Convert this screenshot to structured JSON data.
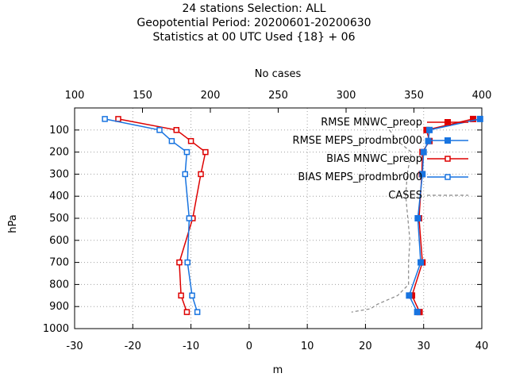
{
  "titles": [
    "24 stations Selection: ALL",
    "Geopotential  Period: 20200601-20200630",
    "Statistics at 00 UTC  Used {18} + 06"
  ],
  "chart_data": {
    "type": "line",
    "xlabel": "m",
    "ylabel": "hPa",
    "x2label": "No cases",
    "xlim": [
      -30,
      40
    ],
    "x2lim": [
      100,
      400
    ],
    "ylim": [
      1000,
      0
    ],
    "y_reversed": true,
    "xticks": [
      -30,
      -20,
      -10,
      0,
      10,
      20,
      30,
      40
    ],
    "x2ticks": [
      100,
      150,
      200,
      250,
      300,
      350,
      400
    ],
    "yticks": [
      100,
      200,
      300,
      400,
      500,
      600,
      700,
      800,
      900,
      1000
    ],
    "grid": true,
    "legend_position": "top-right",
    "colors": {
      "red": "#dd0000",
      "blue": "#1874e0",
      "gray": "#888888"
    },
    "series": [
      {
        "name": "RMSE MNWC_preop",
        "color": "#dd0000",
        "marker": "filled-square",
        "axis": "bottom",
        "points": [
          [
            38.5,
            50
          ],
          [
            30.5,
            100
          ],
          [
            31.0,
            150
          ],
          [
            29.8,
            200
          ],
          [
            29.7,
            300
          ],
          [
            29.2,
            500
          ],
          [
            29.8,
            700
          ],
          [
            28.0,
            850
          ],
          [
            29.3,
            925
          ]
        ]
      },
      {
        "name": "RMSE MEPS_prodmbr000",
        "color": "#1874e0",
        "marker": "filled-square",
        "axis": "bottom",
        "points": [
          [
            39.7,
            50
          ],
          [
            31.0,
            100
          ],
          [
            30.8,
            150
          ],
          [
            30.0,
            200
          ],
          [
            29.8,
            300
          ],
          [
            29.0,
            500
          ],
          [
            29.5,
            700
          ],
          [
            27.5,
            850
          ],
          [
            28.9,
            925
          ]
        ]
      },
      {
        "name": "BIAS MNWC_preop",
        "color": "#dd0000",
        "marker": "open-square",
        "axis": "bottom",
        "points": [
          [
            -22.5,
            50
          ],
          [
            -12.5,
            100
          ],
          [
            -10.0,
            150
          ],
          [
            -7.5,
            200
          ],
          [
            -8.3,
            300
          ],
          [
            -9.7,
            500
          ],
          [
            -12.0,
            700
          ],
          [
            -11.7,
            850
          ],
          [
            -10.7,
            925
          ]
        ]
      },
      {
        "name": "BIAS MEPS_prodmbr000",
        "color": "#1874e0",
        "marker": "open-square",
        "axis": "bottom",
        "points": [
          [
            -24.8,
            50
          ],
          [
            -15.4,
            100
          ],
          [
            -13.3,
            150
          ],
          [
            -10.7,
            200
          ],
          [
            -11.0,
            300
          ],
          [
            -10.3,
            500
          ],
          [
            -10.6,
            700
          ],
          [
            -9.8,
            850
          ],
          [
            -8.9,
            925
          ]
        ]
      },
      {
        "name": "CASES",
        "color": "#888888",
        "marker": "none",
        "dash": true,
        "axis": "top",
        "points": [
          [
            332,
            100
          ],
          [
            338,
            150
          ],
          [
            348,
            200
          ],
          [
            345,
            300
          ],
          [
            344,
            400
          ],
          [
            347,
            600
          ],
          [
            346,
            700
          ],
          [
            346,
            800
          ],
          [
            338,
            850
          ],
          [
            323,
            890
          ],
          [
            318,
            910
          ],
          [
            304,
            925
          ]
        ]
      }
    ]
  }
}
